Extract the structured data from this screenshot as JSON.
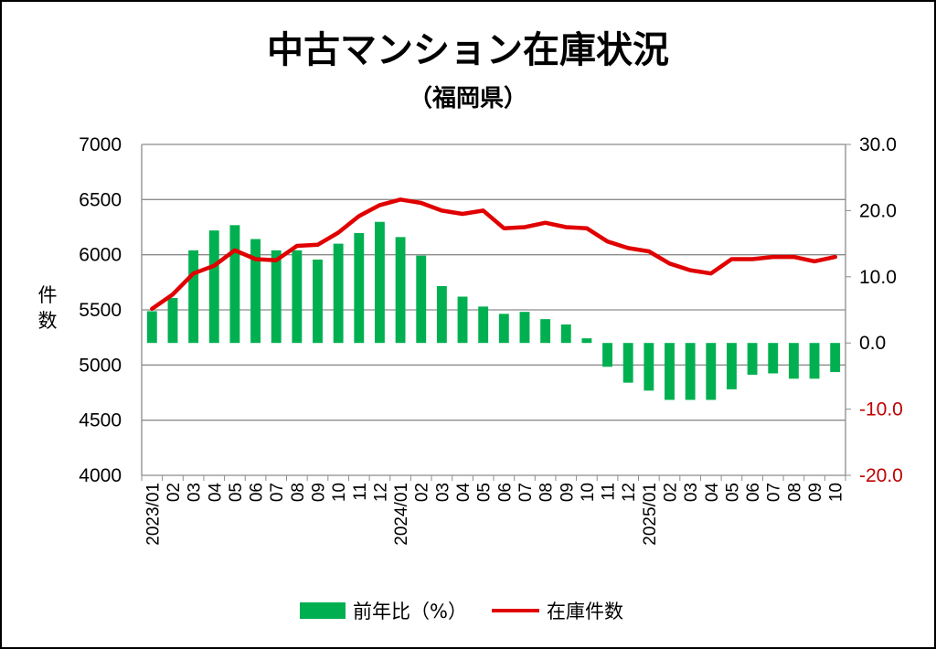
{
  "chart_data": {
    "type": "bar+line",
    "title": "中古マンション在庫状況",
    "subtitle": "（福岡県）",
    "ylabel_left": [
      "件",
      "数"
    ],
    "categories": [
      "2023/01",
      "02",
      "03",
      "04",
      "05",
      "06",
      "07",
      "08",
      "09",
      "10",
      "11",
      "12",
      "2024/01",
      "02",
      "03",
      "04",
      "05",
      "06",
      "07",
      "08",
      "09",
      "10",
      "11",
      "12",
      "2025/01",
      "02",
      "03",
      "04",
      "05",
      "06",
      "07",
      "08",
      "09",
      "10"
    ],
    "left_axis": {
      "min": 4000,
      "max": 7000,
      "ticks": [
        "4000",
        "4500",
        "5000",
        "5500",
        "6000",
        "6500",
        "7000"
      ]
    },
    "right_axis": {
      "min": -20,
      "max": 30,
      "ticks": [
        "-20.0",
        "-10.0",
        "0.0",
        "10.0",
        "20.0",
        "30.0"
      ],
      "negative_color": "#c00000"
    },
    "series": [
      {
        "name": "前年比（%）",
        "type": "bar",
        "axis": "right",
        "color": "#00b050",
        "values": [
          4.8,
          6.8,
          14.0,
          17.0,
          17.8,
          15.7,
          14.0,
          14.0,
          12.6,
          15.0,
          16.6,
          18.3,
          16.0,
          13.2,
          8.6,
          7.0,
          5.5,
          4.4,
          4.7,
          3.6,
          2.8,
          0.7,
          -3.6,
          -6.0,
          -7.2,
          -8.6,
          -8.6,
          -8.6,
          -7.0,
          -4.8,
          -4.6,
          -5.4,
          -5.4,
          -4.4
        ]
      },
      {
        "name": "在庫件数",
        "type": "line",
        "axis": "left",
        "color": "#e00000",
        "values": [
          5510,
          5640,
          5830,
          5900,
          6040,
          5960,
          5950,
          6080,
          6090,
          6200,
          6350,
          6450,
          6500,
          6470,
          6400,
          6370,
          6400,
          6240,
          6250,
          6290,
          6250,
          6240,
          6120,
          6060,
          6030,
          5920,
          5860,
          5830,
          5960,
          5960,
          5980,
          5980,
          5940,
          5980
        ]
      }
    ],
    "legend": [
      {
        "label": "前年比（%）",
        "swatch": "bar",
        "color": "#00b050"
      },
      {
        "label": "在庫件数",
        "swatch": "line",
        "color": "#e00000"
      }
    ]
  }
}
